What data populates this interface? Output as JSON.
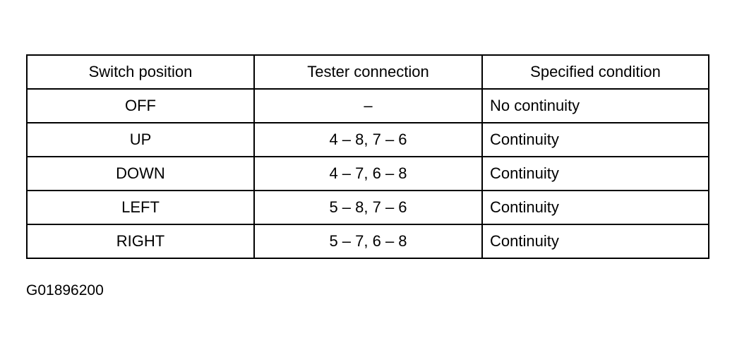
{
  "table": {
    "headers": [
      "Switch position",
      "Tester connection",
      "Specified condition"
    ],
    "rows": [
      [
        "OFF",
        "–",
        "No continuity"
      ],
      [
        "UP",
        "4 – 8, 7 – 6",
        "Continuity"
      ],
      [
        "DOWN",
        "4 – 7, 6 – 8",
        "Continuity"
      ],
      [
        "LEFT",
        "5 – 8, 7 – 6",
        "Continuity"
      ],
      [
        "RIGHT",
        "5 – 7, 6 – 8",
        "Continuity"
      ]
    ]
  },
  "figure_code": "G01896200"
}
